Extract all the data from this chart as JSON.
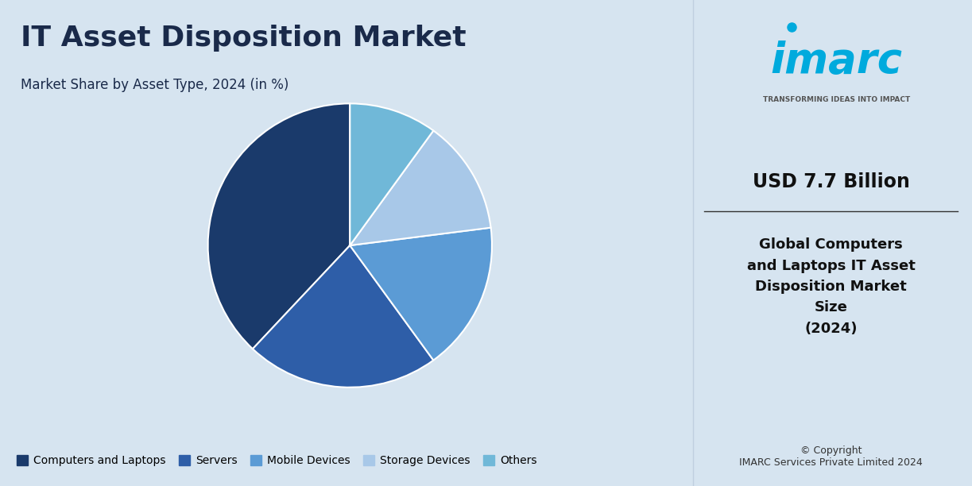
{
  "title": "IT Asset Disposition Market",
  "subtitle": "Market Share by Asset Type, 2024 (in %)",
  "bg_color": "#d6e4f0",
  "right_panel_bg": "#ffffff",
  "labels": [
    "Computers and Laptops",
    "Servers",
    "Mobile Devices",
    "Storage Devices",
    "Others"
  ],
  "sizes": [
    38,
    22,
    17,
    13,
    10
  ],
  "colors": [
    "#1a3a6b",
    "#2e5ea8",
    "#5b9bd5",
    "#a8c8e8",
    "#70b8d8"
  ],
  "startangle": 90,
  "usd_value": "USD 7.7 Billion",
  "right_text": "Global Computers\nand Laptops IT Asset\nDisposition Market\nSize\n(2024)",
  "copyright": "© Copyright\nIMARC Services Private Limited 2024",
  "imarc_tagline": "TRANSFORMING IDEAS INTO IMPACT"
}
